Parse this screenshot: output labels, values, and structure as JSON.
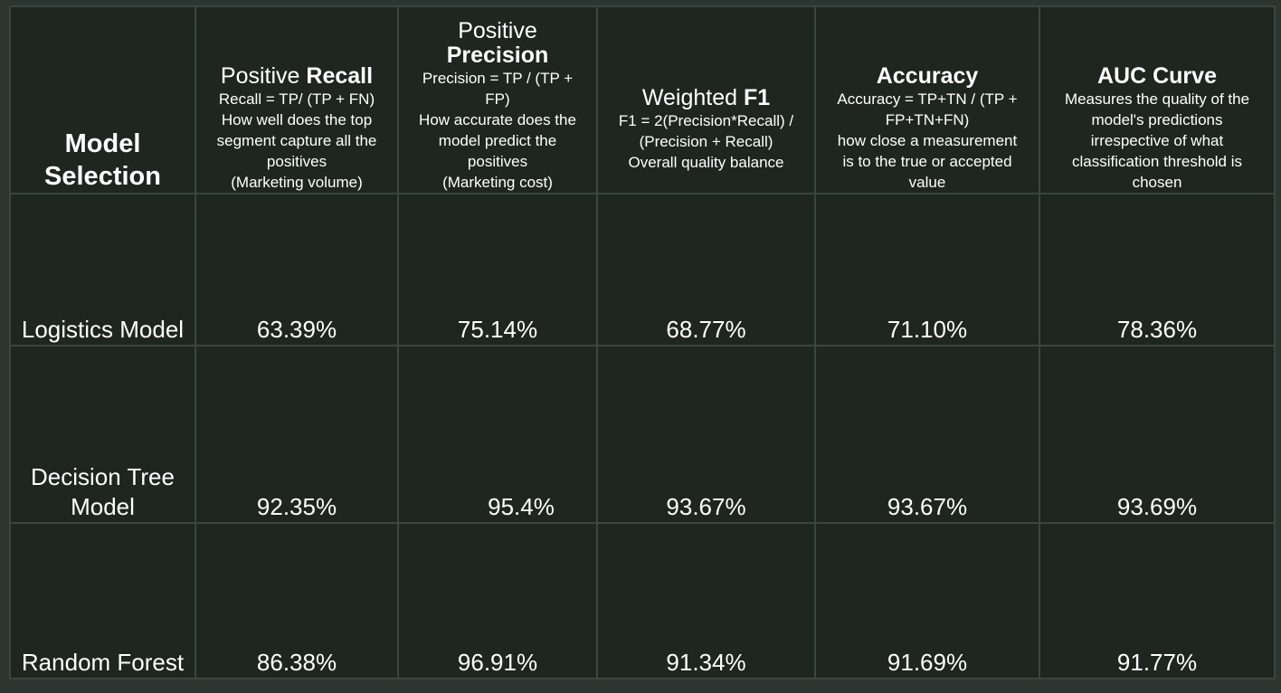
{
  "table": {
    "corner_label": "Model Selection",
    "columns": [
      {
        "title_plain": "Positive ",
        "title_bold": "Recall",
        "title_break": false,
        "desc": [
          "Recall = TP/ (TP + FN)",
          "How well does the top",
          "segment capture all the",
          "positives",
          "(Marketing volume)"
        ]
      },
      {
        "title_plain": "Positive",
        "title_bold": "Precision",
        "title_break": true,
        "desc": [
          "Precision = TP / (TP +",
          "FP)",
          "How accurate does the",
          "model predict the",
          "positives",
          "(Marketing cost)"
        ]
      },
      {
        "title_plain": "Weighted ",
        "title_bold": "F1",
        "title_break": false,
        "desc": [
          "F1 = 2(Precision*Recall) /",
          "(Precision + Recall)",
          "Overall quality balance"
        ]
      },
      {
        "title_plain": "",
        "title_bold": "Accuracy",
        "title_break": false,
        "desc": [
          "Accuracy = TP+TN / (TP +",
          "FP+TN+FN)",
          "how close a measurement",
          "is to the true or accepted",
          "value"
        ]
      },
      {
        "title_plain": "",
        "title_bold": "AUC Curve",
        "title_break": false,
        "desc": [
          "Measures the quality of the",
          "model's predictions",
          "irrespective of what",
          "classification threshold is",
          "chosen"
        ]
      }
    ],
    "rows": [
      {
        "label": "Logistics Model",
        "values": [
          "63.39%",
          "75.14%",
          "68.77%",
          "71.10%",
          "78.36%"
        ]
      },
      {
        "label": "Decision Tree Model",
        "values": [
          "92.35%",
          "95.4%",
          "93.67%",
          "93.67%",
          "93.69%"
        ]
      },
      {
        "label": "Random Forest",
        "values": [
          "86.38%",
          "96.91%",
          "91.34%",
          "91.69%",
          "91.77%"
        ]
      }
    ]
  }
}
